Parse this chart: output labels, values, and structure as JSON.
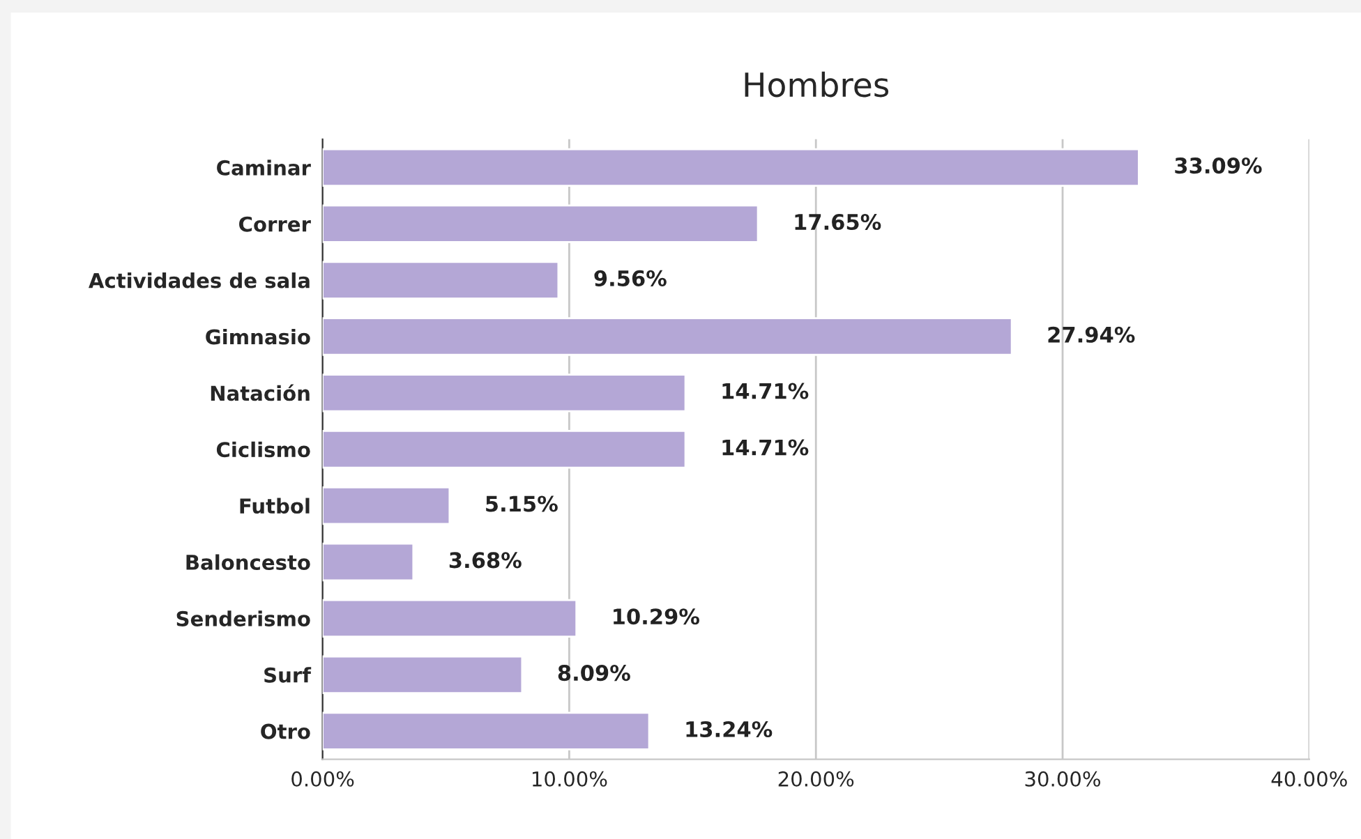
{
  "chart_data": {
    "type": "bar",
    "orientation": "horizontal",
    "title": "Hombres",
    "categories": [
      "Caminar",
      "Correr",
      "Actividades de sala",
      "Gimnasio",
      "Natación",
      "Ciclismo",
      "Futbol",
      "Baloncesto",
      "Senderismo",
      "Surf",
      "Otro"
    ],
    "values": [
      33.09,
      17.65,
      9.56,
      27.94,
      14.71,
      14.71,
      5.15,
      3.68,
      10.29,
      8.09,
      13.24
    ],
    "value_labels": [
      "33.09%",
      "17.65%",
      "9.56%",
      "27.94%",
      "14.71%",
      "14.71%",
      "5.15%",
      "3.68%",
      "10.29%",
      "8.09%",
      "13.24%"
    ],
    "color": "#b4a7d6",
    "xlim": [
      0,
      40
    ],
    "xticks": [
      {
        "value": 0,
        "label": "0.00%"
      },
      {
        "value": 10,
        "label": "10.00%"
      },
      {
        "value": 20,
        "label": "20.00%"
      },
      {
        "value": 30,
        "label": "30.00%"
      },
      {
        "value": 40,
        "label": "40.00%"
      }
    ],
    "grid": "x",
    "legend": false
  }
}
